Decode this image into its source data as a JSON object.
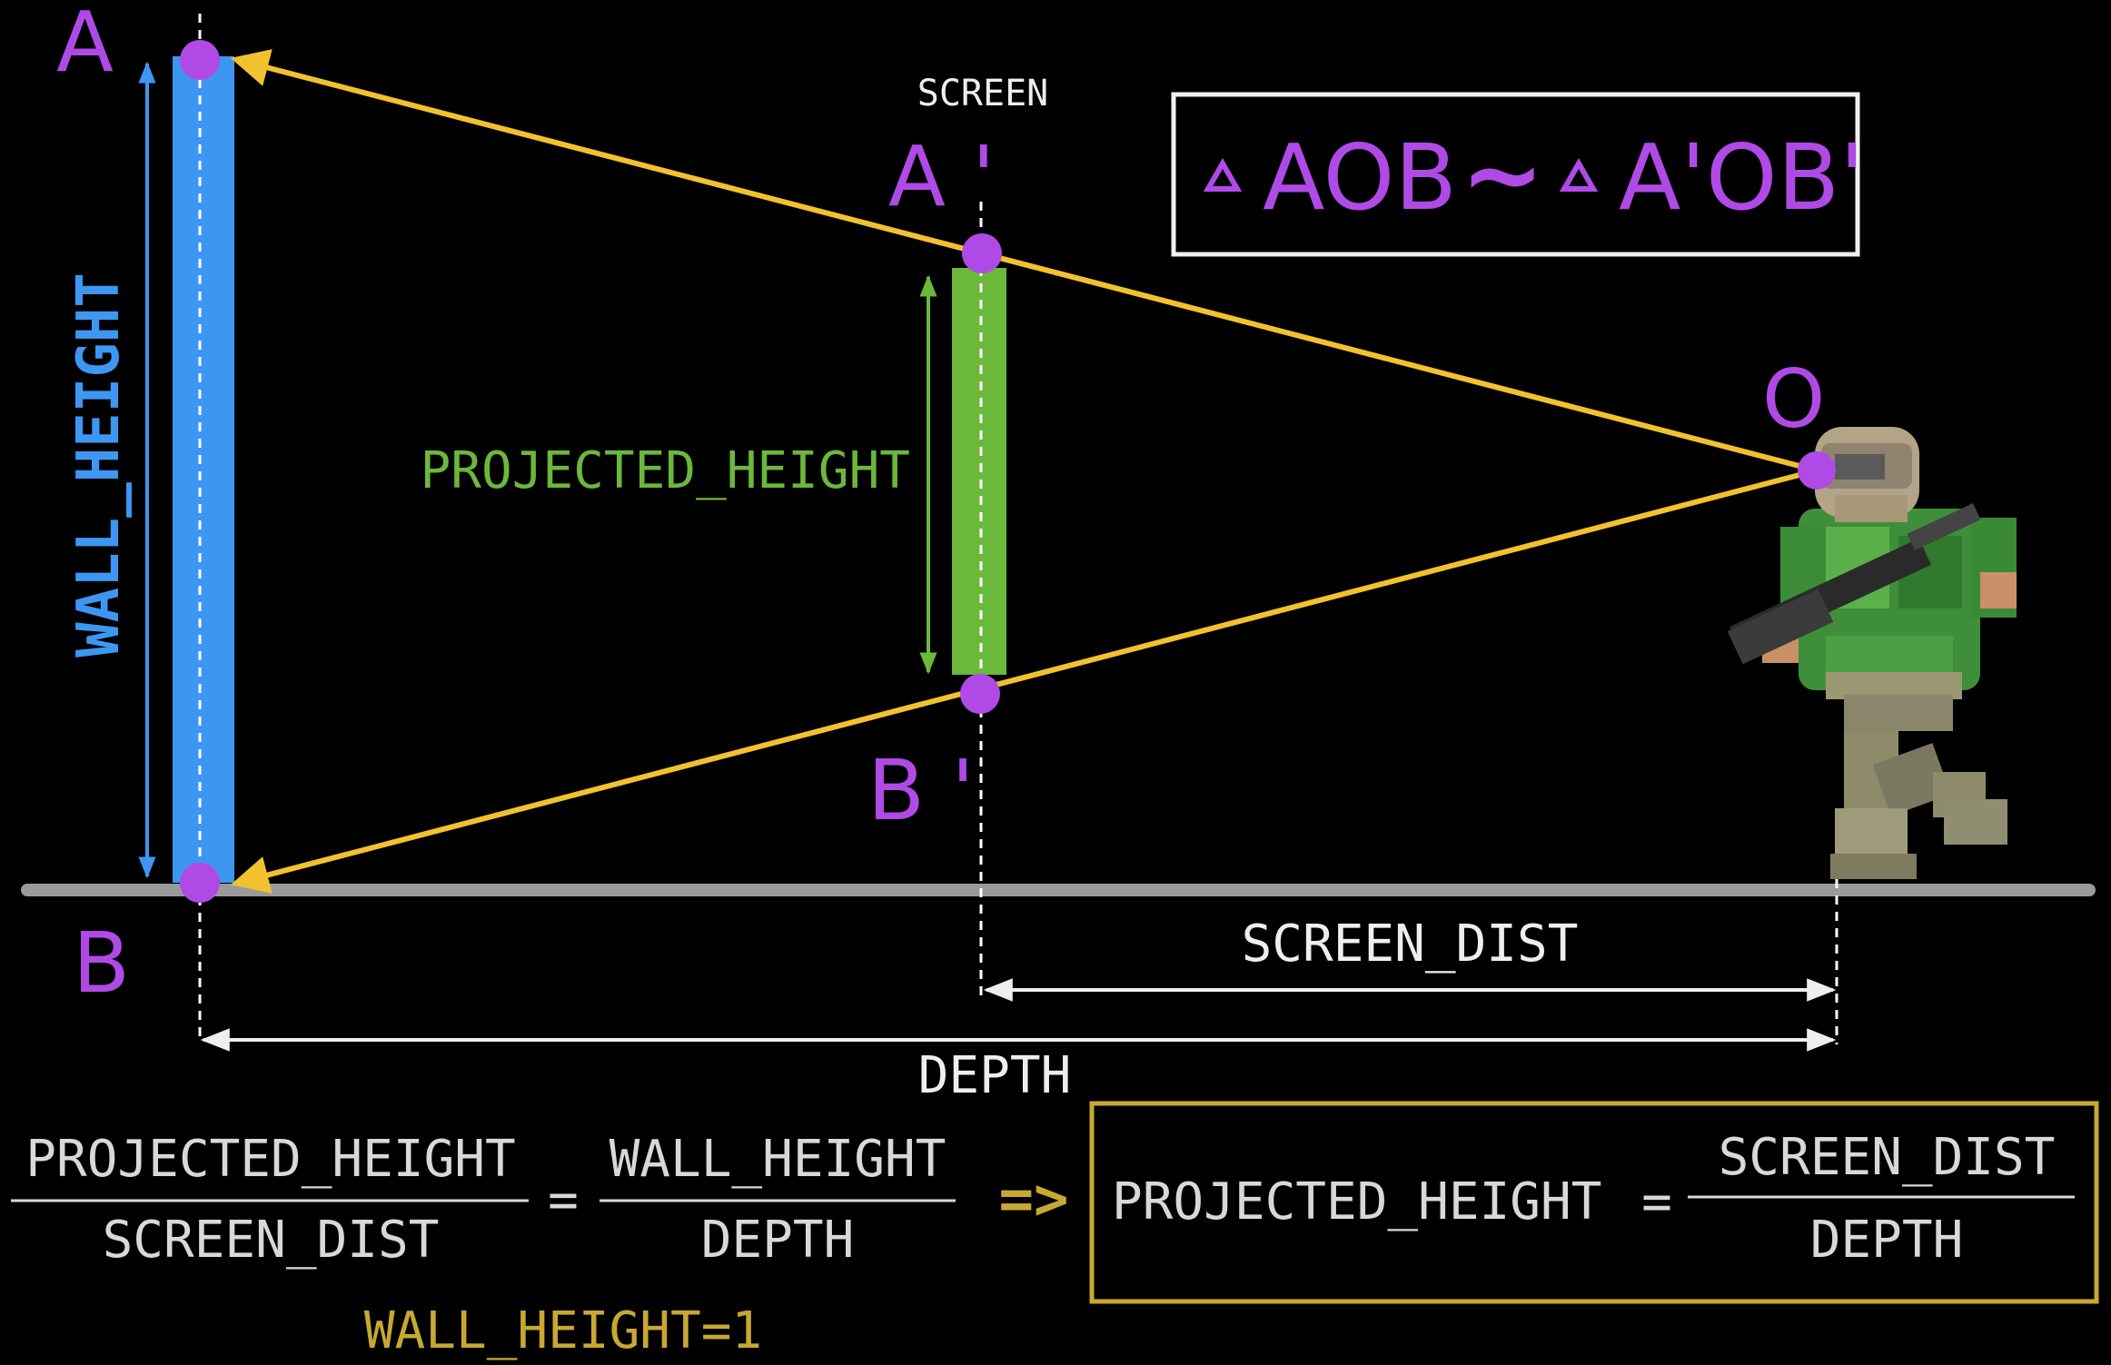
{
  "points": {
    "a": "A",
    "b": "B",
    "a_prime": "A '",
    "b_prime": "B '",
    "o": "O"
  },
  "labels": {
    "screen": "SCREEN",
    "wall_height": "WALL_HEIGHT",
    "projected_height": "PROJECTED_HEIGHT",
    "screen_dist": "SCREEN_DIST",
    "depth": "DEPTH"
  },
  "similarity": {
    "left": "AOB",
    "tilde": "~",
    "right": "A'OB'"
  },
  "formula": {
    "lhs_num": "PROJECTED_HEIGHT",
    "lhs_den": "SCREEN_DIST",
    "eq": "=",
    "mid_num": "WALL_HEIGHT",
    "mid_den": "DEPTH",
    "implies": "=>",
    "boxed_lhs": "PROJECTED_HEIGHT",
    "boxed_eq": "=",
    "boxed_num": "SCREEN_DIST",
    "boxed_den": "DEPTH",
    "note": "WALL_HEIGHT=1"
  },
  "colors": {
    "background": "#000000",
    "wall": "#3d97f2",
    "projection": "#6bb83a",
    "rays": "#f2c12e",
    "points": "#b04ae6",
    "ground": "#9a9a9a",
    "formula_text": "#d8d8d8",
    "formula_accent": "#c9a832",
    "box_border": "#f0f0f0"
  },
  "figure": {
    "name": "doom-marine-sprite"
  }
}
